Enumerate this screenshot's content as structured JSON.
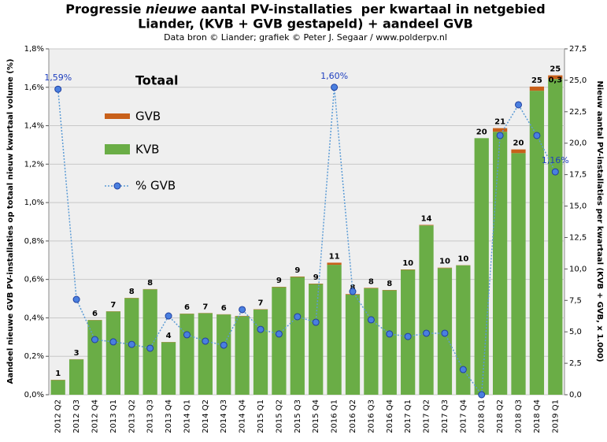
{
  "chart_data": {
    "type": "bar-line",
    "title": [
      "Progressie ",
      "nieuwe",
      " aantal PV-installaties  per kwartaal in netgebied",
      "Liander, (KVB + GVB gestapeld) + aandeel GVB"
    ],
    "subtitle": "Data bron © Liander; grafiek © Peter J. Segaar / www.polderpv.nl",
    "ylabel": "Aandeel nieuwe GVB PV-installaties op totaal nieuw kwartaal volume (%)",
    "y2label": "Nieuw aantal PV-installaties per kwartaal (KVB + GVB, x 1.000)",
    "legend_title": "Totaal",
    "annotations": [
      "25"
    ],
    "stacked": true,
    "grid": true,
    "categories": [
      "2012 Q2",
      "2012 Q3",
      "2012 Q4",
      "2013 Q1",
      "2013 Q2",
      "2013 Q3",
      "2013 Q4",
      "2014 Q1",
      "2014 Q2",
      "2014 Q3",
      "2014 Q4",
      "2015 Q1",
      "2015 Q2",
      "2015 Q3",
      "2015 Q4",
      "2016 Q1",
      "2016 Q2",
      "2016 Q3",
      "2016 Q4",
      "2017 Q1",
      "2017 Q2",
      "2017 Q3",
      "2017 Q4",
      "2018 Q1",
      "2018 Q2",
      "2018 Q3",
      "2018 Q4",
      "2019 Q1"
    ],
    "total_labels": [
      "1",
      "3",
      "6",
      "7",
      "8",
      "8",
      "4",
      "6",
      "7",
      "6",
      "6",
      "7",
      "9",
      "9",
      "9",
      "11",
      "8",
      "8",
      "8",
      "10",
      "14",
      "10",
      "10",
      "20",
      "21",
      "20",
      "25",
      "25"
    ],
    "series": [
      {
        "name": "GVB",
        "type": "bar",
        "axis": "y2",
        "color": "#c8601a",
        "values": [
          0.019,
          0.014,
          0.017,
          0.018,
          0.02,
          0.02,
          0.017,
          0.02,
          0.018,
          0.017,
          0.028,
          0.023,
          0.027,
          0.038,
          0.033,
          0.168,
          0.043,
          0.033,
          0.026,
          0.03,
          0.043,
          0.032,
          0.013,
          0,
          0.286,
          0.294,
          0.33,
          0.295
        ],
        "value_labels": [
          null,
          null,
          null,
          null,
          null,
          null,
          null,
          null,
          null,
          null,
          null,
          null,
          null,
          null,
          null,
          null,
          null,
          null,
          null,
          null,
          null,
          null,
          null,
          null,
          null,
          null,
          null,
          "0,3"
        ]
      },
      {
        "name": "KVB",
        "type": "bar",
        "axis": "y2",
        "color": "#6aad46",
        "values": [
          1.17,
          2.81,
          5.93,
          6.62,
          7.68,
          8.38,
          4.18,
          6.43,
          6.48,
          6.38,
          6.24,
          6.78,
          8.55,
          9.36,
          8.8,
          10.33,
          7.96,
          8.47,
          8.3,
          9.93,
          13.46,
          10.07,
          10.29,
          20.4,
          20.91,
          19.21,
          24.17,
          25.1
        ]
      },
      {
        "name": "% GVB",
        "type": "line",
        "axis": "y",
        "color": "#5b9bd5",
        "marker_color": "#4a7fe0",
        "values": [
          1.59,
          0.496,
          0.287,
          0.275,
          0.262,
          0.242,
          0.41,
          0.312,
          0.279,
          0.258,
          0.443,
          0.34,
          0.316,
          0.406,
          0.377,
          1.6,
          0.537,
          0.39,
          0.316,
          0.303,
          0.32,
          0.32,
          0.131,
          0,
          1.349,
          1.509,
          1.349,
          1.16
        ],
        "value_labels": [
          "1,59%",
          null,
          null,
          null,
          null,
          null,
          null,
          null,
          null,
          null,
          null,
          null,
          null,
          null,
          null,
          "1,60%",
          null,
          null,
          null,
          null,
          null,
          null,
          null,
          null,
          null,
          null,
          null,
          "1,16%"
        ]
      }
    ],
    "ylim": [
      0,
      1.8
    ],
    "yticks": [
      {
        "value": 0,
        "label": "0,0%"
      },
      {
        "value": 0.2,
        "label": "0,2%"
      },
      {
        "value": 0.4,
        "label": "0,4%"
      },
      {
        "value": 0.6,
        "label": "0,6%"
      },
      {
        "value": 0.8,
        "label": "0,8%"
      },
      {
        "value": 1.0,
        "label": "1,0%"
      },
      {
        "value": 1.2,
        "label": "1,2%"
      },
      {
        "value": 1.4,
        "label": "1,4%"
      },
      {
        "value": 1.6,
        "label": "1,6%"
      },
      {
        "value": 1.8,
        "label": "1,8%"
      }
    ],
    "y2lim": [
      0,
      27.5
    ],
    "y2ticks": [
      {
        "value": 0,
        "label": "0,0"
      },
      {
        "value": 2.5,
        "label": "2,5"
      },
      {
        "value": 5,
        "label": "5,0"
      },
      {
        "value": 7.5,
        "label": "7,5"
      },
      {
        "value": 10,
        "label": "10,0"
      },
      {
        "value": 12.5,
        "label": "12,5"
      },
      {
        "value": 15,
        "label": "15,0"
      },
      {
        "value": 17.5,
        "label": "17,5"
      },
      {
        "value": 20,
        "label": "20,0"
      },
      {
        "value": 22.5,
        "label": "22,5"
      },
      {
        "value": 25,
        "label": "25,0"
      },
      {
        "value": 27.5,
        "label": "27,5"
      }
    ]
  }
}
